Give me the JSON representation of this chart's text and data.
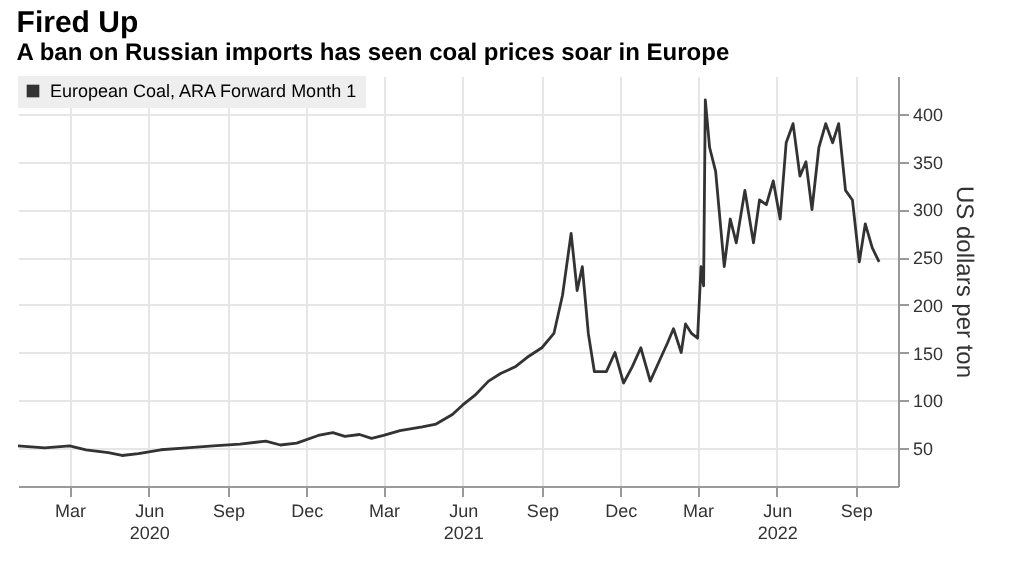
{
  "chart_data": {
    "type": "line",
    "title": "Fired Up",
    "subtitle": "A ban on Russian imports has seen coal prices soar in Europe",
    "ylabel": "US dollars per ton",
    "x": [
      "2020-01-01",
      "2020-02-01",
      "2020-03-01",
      "2020-03-20",
      "2020-04-15",
      "2020-05-01",
      "2020-05-20",
      "2020-06-15",
      "2020-07-15",
      "2020-08-15",
      "2020-09-15",
      "2020-10-15",
      "2020-11-01",
      "2020-11-20",
      "2020-12-15",
      "2021-01-01",
      "2021-01-15",
      "2021-02-01",
      "2021-02-15",
      "2021-03-01",
      "2021-03-20",
      "2021-04-15",
      "2021-05-01",
      "2021-05-20",
      "2021-06-01",
      "2021-06-15",
      "2021-07-01",
      "2021-07-15",
      "2021-08-01",
      "2021-08-15",
      "2021-09-01",
      "2021-09-15",
      "2021-09-25",
      "2021-10-05",
      "2021-10-12",
      "2021-10-18",
      "2021-10-25",
      "2021-11-01",
      "2021-11-15",
      "2021-11-25",
      "2021-12-05",
      "2021-12-15",
      "2021-12-25",
      "2022-01-05",
      "2022-01-15",
      "2022-01-25",
      "2022-02-01",
      "2022-02-10",
      "2022-02-15",
      "2022-02-22",
      "2022-03-01",
      "2022-03-05",
      "2022-03-08",
      "2022-03-10",
      "2022-03-15",
      "2022-03-22",
      "2022-04-01",
      "2022-04-08",
      "2022-04-15",
      "2022-04-25",
      "2022-05-05",
      "2022-05-12",
      "2022-05-20",
      "2022-05-28",
      "2022-06-05",
      "2022-06-12",
      "2022-06-20",
      "2022-06-28",
      "2022-07-05",
      "2022-07-12",
      "2022-07-20",
      "2022-07-28",
      "2022-08-05",
      "2022-08-12",
      "2022-08-20",
      "2022-08-28",
      "2022-09-05",
      "2022-09-12",
      "2022-09-20",
      "2022-09-28"
    ],
    "series": [
      {
        "name": "European Coal, ARA Forward Month 1",
        "color": "#333333",
        "values": [
          52,
          50,
          52,
          48,
          45,
          42,
          44,
          48,
          50,
          52,
          54,
          57,
          53,
          55,
          63,
          66,
          62,
          64,
          60,
          63,
          68,
          72,
          75,
          85,
          95,
          105,
          120,
          128,
          135,
          145,
          155,
          170,
          210,
          275,
          215,
          240,
          170,
          130,
          130,
          150,
          118,
          135,
          155,
          120,
          140,
          160,
          175,
          150,
          180,
          170,
          165,
          240,
          220,
          415,
          365,
          340,
          240,
          290,
          265,
          320,
          265,
          310,
          305,
          330,
          290,
          370,
          390,
          335,
          350,
          300,
          365,
          390,
          370,
          390,
          320,
          310,
          245,
          285,
          260,
          245
        ]
      }
    ],
    "xlim": [
      "2020-01-01",
      "2022-10-20"
    ],
    "xticks": [
      {
        "value": "2020-03-01",
        "label": "Mar"
      },
      {
        "value": "2020-06-01",
        "label": "Jun\n2020"
      },
      {
        "value": "2020-09-01",
        "label": "Sep"
      },
      {
        "value": "2020-12-01",
        "label": "Dec"
      },
      {
        "value": "2021-03-01",
        "label": "Mar"
      },
      {
        "value": "2021-06-01",
        "label": "Jun\n2021"
      },
      {
        "value": "2021-09-01",
        "label": "Sep"
      },
      {
        "value": "2021-12-01",
        "label": "Dec"
      },
      {
        "value": "2022-03-01",
        "label": "Mar"
      },
      {
        "value": "2022-06-01",
        "label": "Jun\n2022"
      },
      {
        "value": "2022-09-01",
        "label": "Sep"
      }
    ],
    "ylim": [
      10,
      440
    ],
    "yticks": [
      50,
      100,
      150,
      200,
      250,
      300,
      350,
      400
    ],
    "grid": true,
    "legend": "top left",
    "line_style": "solid",
    "marker": "none"
  }
}
